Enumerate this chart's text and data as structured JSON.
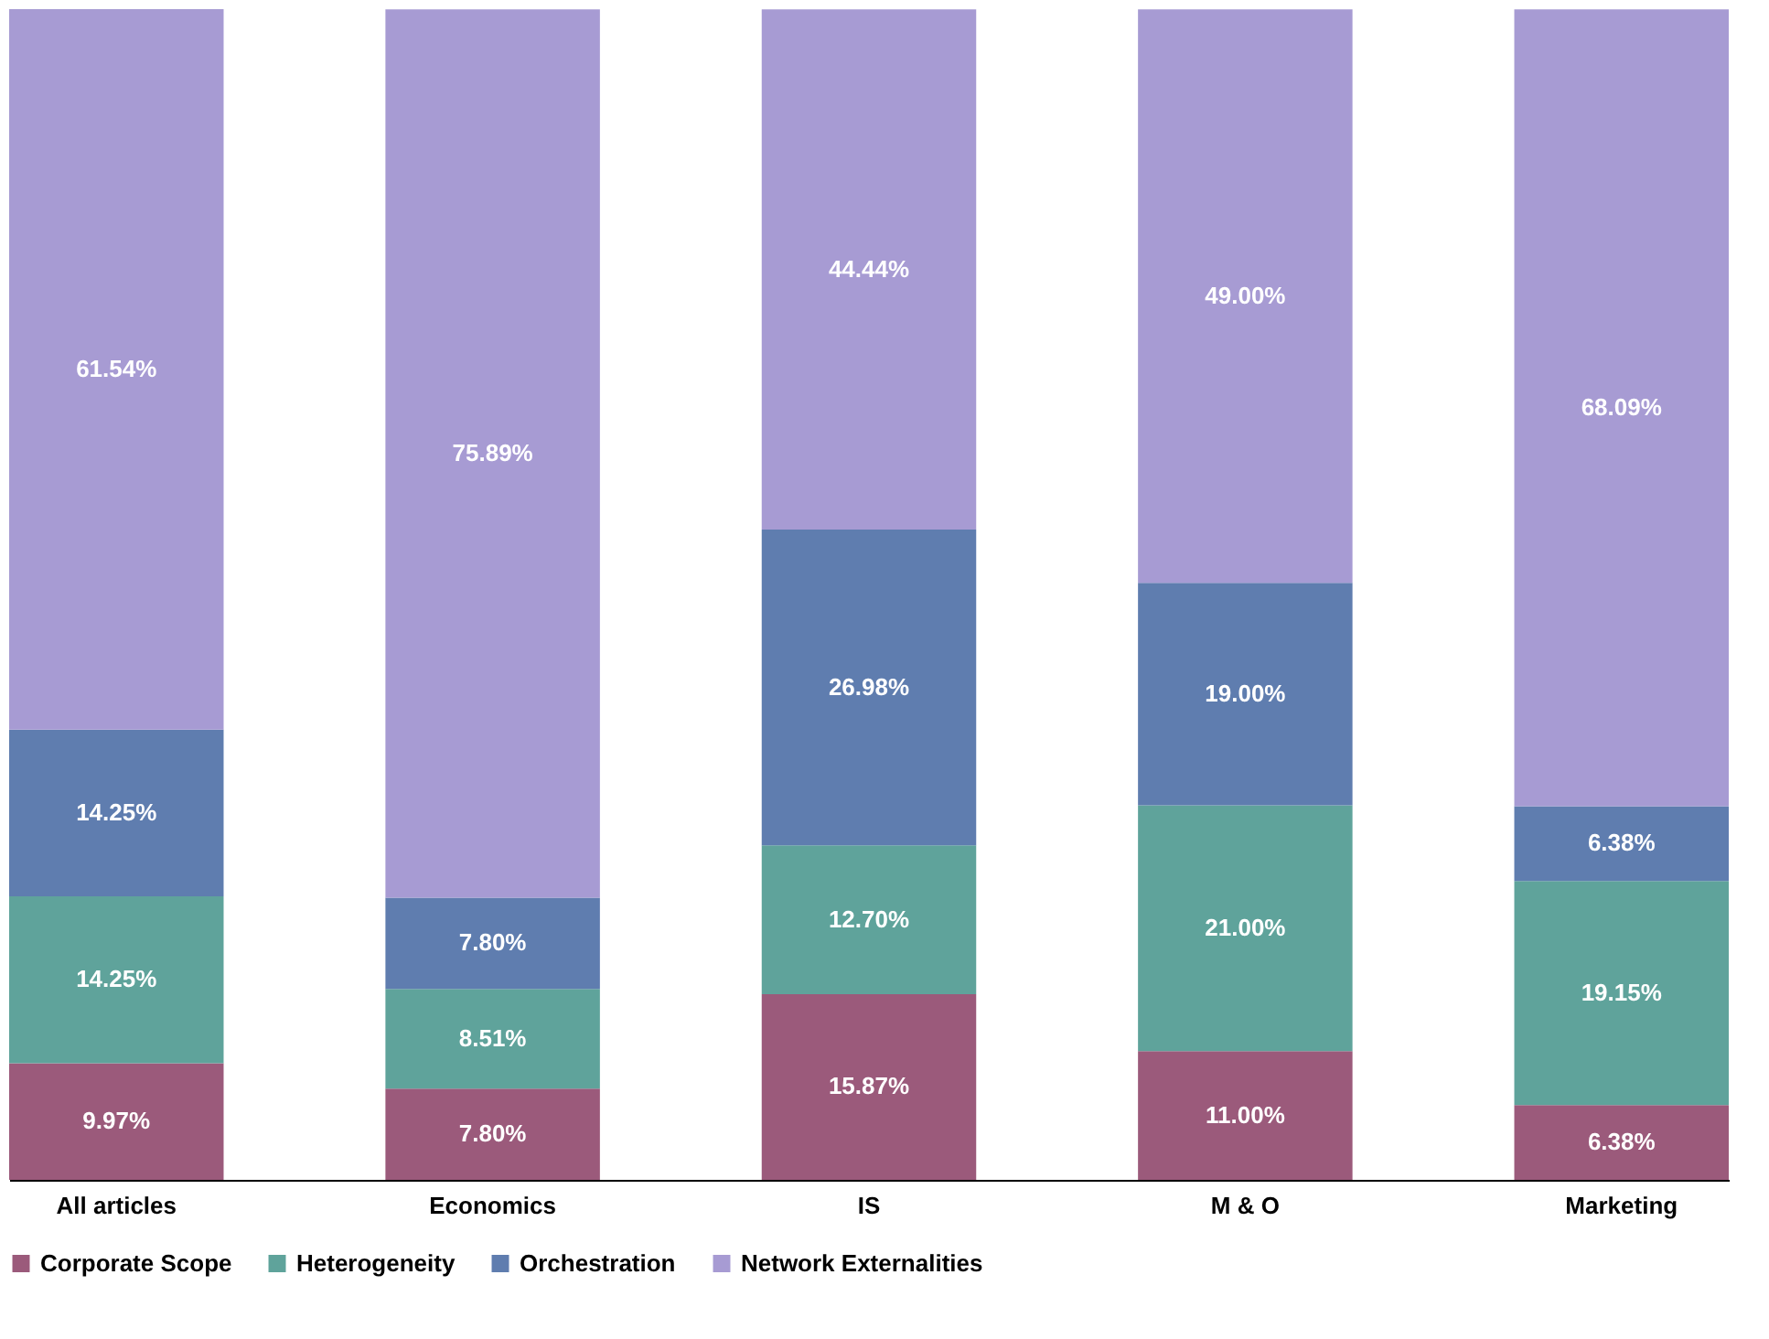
{
  "chart_data": {
    "type": "bar",
    "stacked": true,
    "categories": [
      "All articles",
      "Economics",
      "IS",
      "M & O",
      "Marketing"
    ],
    "series": [
      {
        "name": "Corporate Scope",
        "color": "#9b5a7b",
        "values": [
          9.97,
          7.8,
          15.87,
          11.0,
          6.38
        ],
        "value_labels": [
          "9.97%",
          "7.80%",
          "15.87%",
          "11.00%",
          "6.38%"
        ]
      },
      {
        "name": "Heterogeneity",
        "color": "#5fa39b",
        "values": [
          14.25,
          8.51,
          12.7,
          21.0,
          19.15
        ],
        "value_labels": [
          "14.25%",
          "8.51%",
          "12.70%",
          "21.00%",
          "19.15%"
        ]
      },
      {
        "name": "Orchestration",
        "color": "#5f7daf",
        "values": [
          14.25,
          7.8,
          26.98,
          19.0,
          6.38
        ],
        "value_labels": [
          "14.25%",
          "7.80%",
          "26.98%",
          "19.00%",
          "6.38%"
        ]
      },
      {
        "name": "Network Externalities",
        "color": "#a79bd3",
        "values": [
          61.54,
          75.89,
          44.44,
          49.0,
          68.09
        ],
        "value_labels": [
          "61.54%",
          "75.89%",
          "44.44%",
          "49.00%",
          "68.09%"
        ]
      }
    ],
    "legend": "bottom",
    "grid": false,
    "tick_labels": "x"
  }
}
